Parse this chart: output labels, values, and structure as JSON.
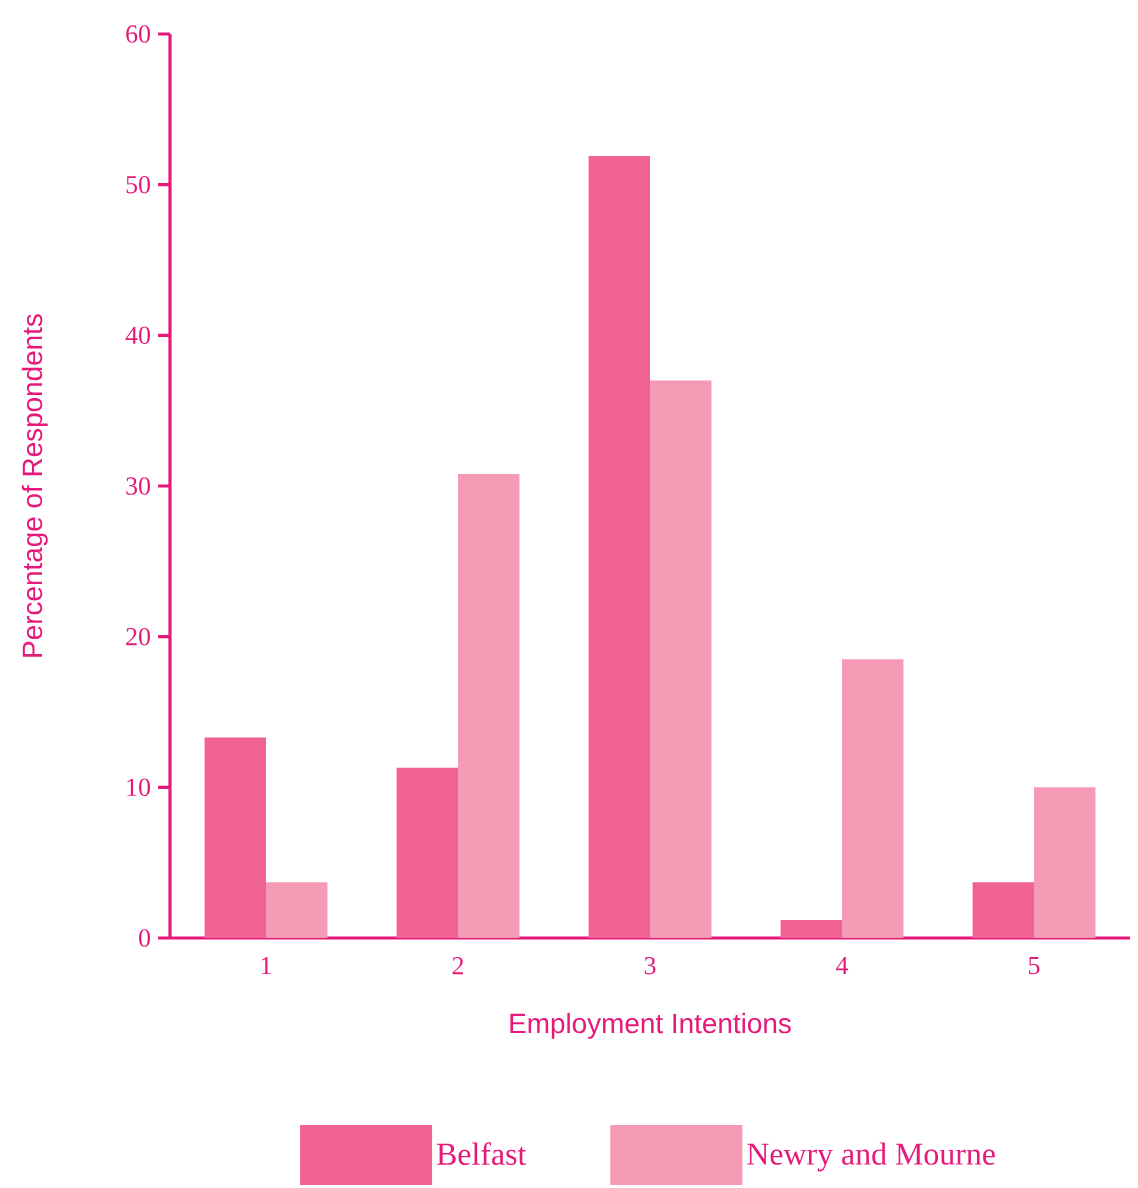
{
  "chart_data": {
    "type": "bar",
    "xlabel": "Employment Intentions",
    "ylabel": "Percentage of Respondents",
    "categories": [
      "1",
      "2",
      "3",
      "4",
      "5"
    ],
    "series": [
      {
        "name": "Belfast",
        "color": "#f06292",
        "values": [
          13.3,
          11.3,
          51.9,
          1.2,
          3.7
        ]
      },
      {
        "name": "Newry and Mourne",
        "color": "#f59ab5",
        "values": [
          3.7,
          30.8,
          37.0,
          18.5,
          10.0
        ]
      }
    ],
    "ylim": [
      0,
      60
    ],
    "yticks": [
      0,
      10,
      20,
      30,
      40,
      50,
      60
    ],
    "grid": false,
    "legend": "bottom"
  }
}
